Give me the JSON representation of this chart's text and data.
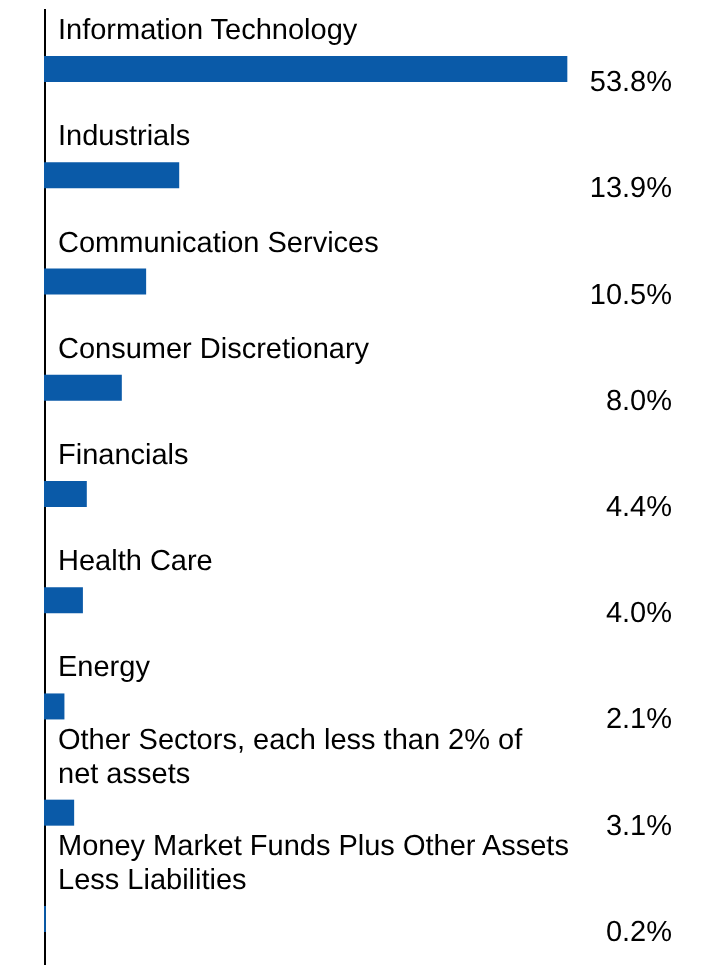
{
  "chart_data": {
    "type": "bar",
    "orientation": "horizontal",
    "categories": [
      "Information Technology",
      "Industrials",
      "Communication Services",
      "Consumer Discretionary",
      "Financials",
      "Health Care",
      "Energy",
      "Other Sectors, each less than 2% of net assets",
      "Money Market Funds Plus Other Assets Less Liabilities"
    ],
    "values": [
      53.8,
      13.9,
      10.5,
      8.0,
      4.4,
      4.0,
      2.1,
      3.1,
      0.2
    ],
    "value_labels": [
      "53.8%",
      "13.9%",
      "10.5%",
      "8.0%",
      "4.4%",
      "4.0%",
      "2.1%",
      "3.1%",
      "0.2%"
    ],
    "color": "#0a5aa8"
  }
}
